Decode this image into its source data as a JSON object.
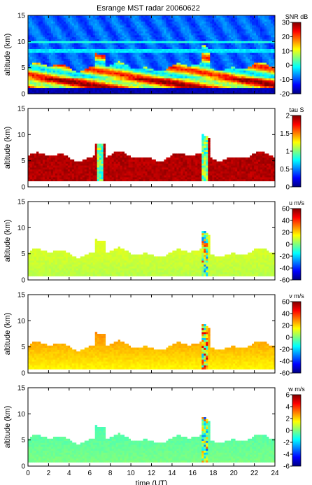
{
  "title": "Esrange MST radar 20060622",
  "chart_data": [
    {
      "type": "heatmap",
      "quantity": "SNR",
      "colorbar_label": "SNR dB",
      "colorbar_range": [
        -20,
        30
      ],
      "colorbar_ticks": [
        30,
        20,
        10,
        0,
        -10,
        -20
      ],
      "ylabel": "altitude (km)",
      "ylim": [
        0,
        15
      ],
      "yticks": [
        0,
        5,
        10,
        15
      ],
      "xlim": [
        0,
        24
      ]
    },
    {
      "type": "heatmap",
      "quantity": "tau",
      "colorbar_label": "tau S",
      "colorbar_range": [
        0,
        2
      ],
      "colorbar_ticks": [
        2,
        1.5,
        1,
        0.5,
        0
      ],
      "ylabel": "altitude (km)",
      "ylim": [
        0,
        15
      ],
      "yticks": [
        0,
        5,
        10,
        15
      ],
      "xlim": [
        0,
        24
      ]
    },
    {
      "type": "heatmap",
      "quantity": "u",
      "colorbar_label": "u m/s",
      "colorbar_range": [
        -60,
        60
      ],
      "colorbar_ticks": [
        60,
        40,
        20,
        0,
        -20,
        -40,
        -60
      ],
      "ylabel": "altitude (km)",
      "ylim": [
        0,
        15
      ],
      "yticks": [
        0,
        5,
        10,
        15
      ],
      "xlim": [
        0,
        24
      ]
    },
    {
      "type": "heatmap",
      "quantity": "v",
      "colorbar_label": "v m/s",
      "colorbar_range": [
        -60,
        60
      ],
      "colorbar_ticks": [
        60,
        40,
        20,
        0,
        -20,
        -40,
        -60
      ],
      "ylabel": "altitude (km)",
      "ylim": [
        0,
        15
      ],
      "yticks": [
        0,
        5,
        10,
        15
      ],
      "xlim": [
        0,
        24
      ]
    },
    {
      "type": "heatmap",
      "quantity": "w",
      "colorbar_label": "w m/s",
      "colorbar_range": [
        -6,
        6
      ],
      "colorbar_ticks": [
        6,
        4,
        2,
        0,
        -2,
        -4,
        -6
      ],
      "ylabel": "altitude (km)",
      "ylim": [
        0,
        15
      ],
      "yticks": [
        0,
        5,
        10,
        15
      ],
      "xlim": [
        0,
        24
      ],
      "xlabel": "time (UT)",
      "xticks": [
        0,
        2,
        4,
        6,
        8,
        10,
        12,
        14,
        16,
        18,
        20,
        22,
        24
      ]
    }
  ]
}
